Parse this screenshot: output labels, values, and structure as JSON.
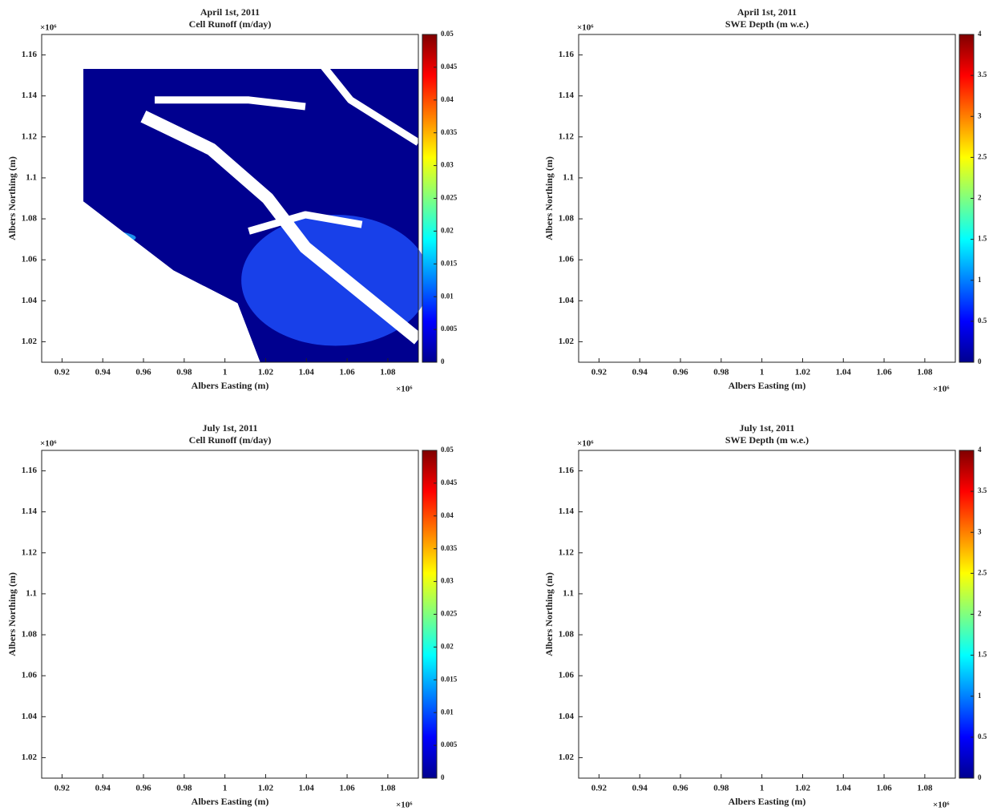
{
  "chart_data": [
    {
      "type": "heatmap",
      "title": "April 1st, 2011",
      "subtitle": "Cell Runoff (m/day)",
      "xlabel": "Albers Easting (m)",
      "ylabel": "Albers Northing (m)",
      "x_exponent_label": "×10⁶",
      "y_exponent_label": "×10⁶",
      "colormap": "jet",
      "xlim": [
        0.91,
        1.095
      ],
      "xticks": [
        0.92,
        0.94,
        0.96,
        0.98,
        1,
        1.02,
        1.04,
        1.06,
        1.08
      ],
      "ylim": [
        1.01,
        1.17
      ],
      "yticks": [
        1.02,
        1.04,
        1.06,
        1.08,
        1.1,
        1.12,
        1.14,
        1.16
      ],
      "clim": [
        0,
        0.05
      ],
      "cticks": [
        0,
        0.005,
        0.01,
        0.015,
        0.02,
        0.025,
        0.03,
        0.035,
        0.04,
        0.045,
        0.05
      ]
    },
    {
      "type": "heatmap",
      "title": "April 1st, 2011",
      "subtitle": "SWE Depth (m w.e.)",
      "xlabel": "Albers Easting (m)",
      "ylabel": "Albers Northing (m)",
      "x_exponent_label": "×10⁶",
      "y_exponent_label": "×10⁶",
      "colormap": "jet",
      "xlim": [
        0.91,
        1.095
      ],
      "xticks": [
        0.92,
        0.94,
        0.96,
        0.98,
        1,
        1.02,
        1.04,
        1.06,
        1.08
      ],
      "ylim": [
        1.01,
        1.17
      ],
      "yticks": [
        1.02,
        1.04,
        1.06,
        1.08,
        1.1,
        1.12,
        1.14,
        1.16
      ],
      "clim": [
        0,
        4
      ],
      "cticks": [
        0,
        0.5,
        1,
        1.5,
        2,
        2.5,
        3,
        3.5,
        4
      ]
    },
    {
      "type": "heatmap",
      "title": "July 1st, 2011",
      "subtitle": "Cell Runoff (m/day)",
      "xlabel": "Albers Easting (m)",
      "ylabel": "Albers Northing (m)",
      "x_exponent_label": "×10⁶",
      "y_exponent_label": "×10⁶",
      "colormap": "jet",
      "xlim": [
        0.91,
        1.095
      ],
      "xticks": [
        0.92,
        0.94,
        0.96,
        0.98,
        1,
        1.02,
        1.04,
        1.06,
        1.08
      ],
      "ylim": [
        1.01,
        1.17
      ],
      "yticks": [
        1.02,
        1.04,
        1.06,
        1.08,
        1.1,
        1.12,
        1.14,
        1.16
      ],
      "clim": [
        0,
        0.05
      ],
      "cticks": [
        0,
        0.005,
        0.01,
        0.015,
        0.02,
        0.025,
        0.03,
        0.035,
        0.04,
        0.045,
        0.05
      ]
    },
    {
      "type": "heatmap",
      "title": "July 1st, 2011",
      "subtitle": "SWE Depth (m w.e.)",
      "xlabel": "Albers Easting (m)",
      "ylabel": "Albers Northing (m)",
      "x_exponent_label": "×10⁶",
      "y_exponent_label": "×10⁶",
      "colormap": "jet",
      "xlim": [
        0.91,
        1.095
      ],
      "xticks": [
        0.92,
        0.94,
        0.96,
        0.98,
        1,
        1.02,
        1.04,
        1.06,
        1.08
      ],
      "ylim": [
        1.01,
        1.17
      ],
      "yticks": [
        1.02,
        1.04,
        1.06,
        1.08,
        1.1,
        1.12,
        1.14,
        1.16
      ],
      "clim": [
        0,
        4
      ],
      "cticks": [
        0,
        0.5,
        1,
        1.5,
        2,
        2.5,
        3,
        3.5,
        4
      ]
    }
  ]
}
